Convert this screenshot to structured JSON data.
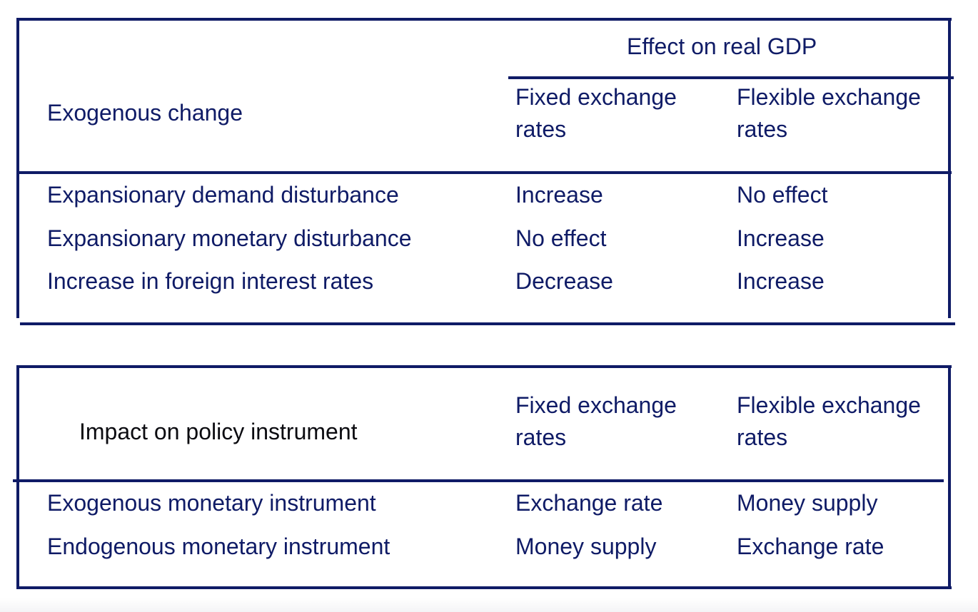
{
  "colors": {
    "rule": "#0f1b66",
    "text": "#0f1b66",
    "text_dark": "#0b0b10",
    "background": "#ffffff"
  },
  "table1": {
    "group_header": "Effect on real GDP",
    "row_header": "Exogenous change",
    "columns": [
      {
        "line1": "Fixed exchange",
        "line2": "rates"
      },
      {
        "line1": "Flexible exchange",
        "line2": "rates"
      }
    ],
    "rows": [
      {
        "label": "Expansionary demand disturbance",
        "fixed": "Increase",
        "flexible": "No effect"
      },
      {
        "label": "Expansionary monetary disturbance",
        "fixed": "No effect",
        "flexible": "Increase"
      },
      {
        "label": "Increase in foreign interest rates",
        "fixed": "Decrease",
        "flexible": "Increase"
      }
    ]
  },
  "table2": {
    "row_header": "Impact on policy instrument",
    "columns": [
      {
        "line1": "Fixed exchange",
        "line2": "rates"
      },
      {
        "line1": "Flexible exchange",
        "line2": "rates"
      }
    ],
    "rows": [
      {
        "label": "Exogenous monetary instrument",
        "fixed": "Exchange rate",
        "flexible": "Money supply"
      },
      {
        "label": "Endogenous monetary instrument",
        "fixed": "Money supply",
        "flexible": "Exchange rate"
      }
    ]
  }
}
